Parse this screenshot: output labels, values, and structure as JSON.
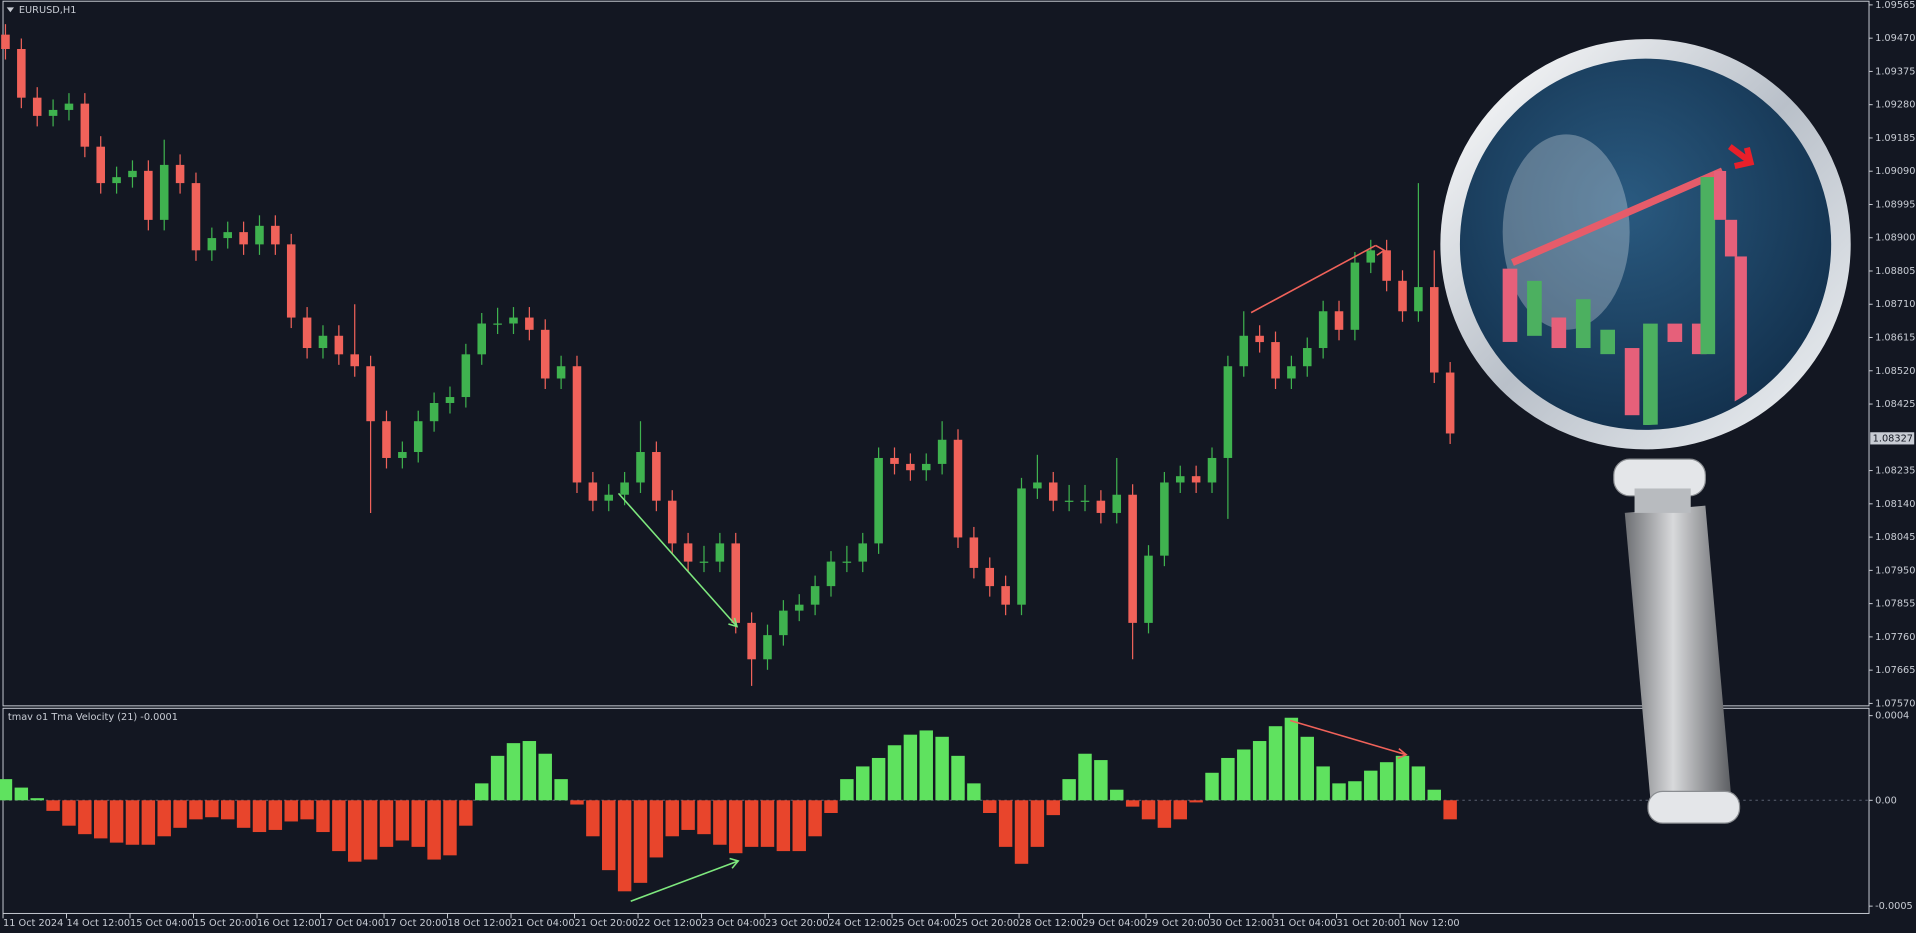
{
  "chart_data": [
    {
      "type": "candlestick",
      "title": "EURUSD,H1",
      "categories": [
        "11 Oct 2024",
        null,
        null,
        null,
        "14 Oct 12:00",
        null,
        null,
        null,
        "15 Oct 04:00",
        null,
        null,
        null,
        "15 Oct 20:00",
        null,
        null,
        null,
        "16 Oct 12:00",
        null,
        null,
        null,
        "17 Oct 04:00",
        null,
        null,
        null,
        "17 Oct 20:00",
        null,
        null,
        null,
        "18 Oct 12:00",
        null,
        null,
        null,
        "21 Oct 04:00",
        null,
        null,
        null,
        "21 Oct 20:00",
        null,
        null,
        null,
        "22 Oct 12:00",
        null,
        null,
        null,
        "23 Oct 04:00",
        null,
        null,
        null,
        "23 Oct 20:00",
        null,
        null,
        null,
        "24 Oct 12:00",
        null,
        null,
        null,
        "25 Oct 04:00",
        null,
        null,
        null,
        "25 Oct 20:00",
        null,
        null,
        null,
        "28 Oct 12:00",
        null,
        null,
        null,
        "29 Oct 04:00",
        null,
        null,
        null,
        "29 Oct 20:00",
        null,
        null,
        null,
        "30 Oct 12:00",
        null,
        null,
        null,
        "31 Oct 04:00",
        null,
        null,
        null,
        "31 Oct 20:00",
        null,
        null,
        null,
        "1 Nov 12:00",
        null,
        null,
        null
      ],
      "open": [
        1.0948,
        1.09439,
        1.093,
        1.09248,
        1.09265,
        1.09283,
        1.0916,
        1.09056,
        1.09073,
        1.09091,
        1.08951,
        1.09108,
        1.09056,
        1.08864,
        1.08899,
        1.08916,
        1.08881,
        1.08934,
        1.08881,
        1.08672,
        1.08585,
        1.0862,
        1.08567,
        1.08533,
        1.08376,
        1.08271,
        1.08288,
        1.08376,
        1.08428,
        1.08445,
        1.08567,
        1.08655,
        1.08655,
        1.08672,
        1.08637,
        1.08498,
        1.08533,
        1.08201,
        1.08149,
        1.08166,
        1.08201,
        1.08288,
        1.08149,
        1.08027,
        1.07975,
        1.07975,
        1.08027,
        1.078,
        1.07696,
        1.07765,
        1.07835,
        1.07852,
        1.07905,
        1.07975,
        1.07975,
        1.08027,
        1.08271,
        1.08254,
        1.08236,
        1.08254,
        1.08323,
        1.08044,
        1.07957,
        1.07905,
        1.07852,
        1.08184,
        1.08201,
        1.08149,
        1.08149,
        1.08149,
        1.08114,
        1.08166,
        1.078,
        1.07992,
        1.08201,
        1.08219,
        1.08201,
        1.08271,
        1.08533,
        1.0862,
        1.08602,
        1.08498,
        1.08533,
        1.08585,
        1.0869,
        1.08637,
        1.08829,
        1.08864,
        1.08777,
        1.0869,
        1.08759,
        1.08515
      ],
      "high": [
        1.0951,
        1.09469,
        1.0933,
        1.09295,
        1.09313,
        1.09313,
        1.0919,
        1.09103,
        1.09121,
        1.09121,
        1.0918,
        1.09138,
        1.09086,
        1.08929,
        1.08946,
        1.08946,
        1.08964,
        1.08964,
        1.08911,
        1.08702,
        1.0865,
        1.0865,
        1.0871,
        1.08563,
        1.08406,
        1.08318,
        1.08406,
        1.08458,
        1.08475,
        1.08597,
        1.08685,
        1.087,
        1.08702,
        1.08702,
        1.08667,
        1.08563,
        1.08563,
        1.08231,
        1.08196,
        1.08231,
        1.08376,
        1.08318,
        1.08179,
        1.08057,
        1.0802,
        1.08057,
        1.08057,
        1.0783,
        1.07795,
        1.07865,
        1.07882,
        1.07935,
        1.08005,
        1.0802,
        1.08057,
        1.08301,
        1.08301,
        1.08284,
        1.08284,
        1.08376,
        1.08353,
        1.08074,
        1.07987,
        1.07935,
        1.08214,
        1.0828,
        1.08231,
        1.08194,
        1.08194,
        1.08179,
        1.08271,
        1.08196,
        1.08022,
        1.08231,
        1.08249,
        1.08249,
        1.08301,
        1.08563,
        1.0869,
        1.0865,
        1.08632,
        1.08563,
        1.08615,
        1.0872,
        1.0872,
        1.08859,
        1.08894,
        1.08894,
        1.08807,
        1.09056,
        1.08864,
        1.08545
      ],
      "low": [
        1.09409,
        1.0927,
        1.09218,
        1.09218,
        1.09235,
        1.0913,
        1.09026,
        1.09026,
        1.09043,
        1.08921,
        1.08921,
        1.09026,
        1.08834,
        1.08834,
        1.08869,
        1.08851,
        1.08851,
        1.08851,
        1.08642,
        1.08555,
        1.08555,
        1.08537,
        1.08503,
        1.08114,
        1.08241,
        1.08241,
        1.08258,
        1.08346,
        1.08398,
        1.08415,
        1.08537,
        1.08625,
        1.08625,
        1.08607,
        1.08468,
        1.08468,
        1.08171,
        1.08119,
        1.08119,
        1.08136,
        1.08171,
        1.08119,
        1.07997,
        1.07945,
        1.07945,
        1.07945,
        1.0777,
        1.0762,
        1.07666,
        1.07735,
        1.07805,
        1.07822,
        1.07875,
        1.07945,
        1.07945,
        1.07997,
        1.08224,
        1.08206,
        1.08206,
        1.08224,
        1.08014,
        1.07927,
        1.07875,
        1.07822,
        1.07822,
        1.08154,
        1.08119,
        1.08119,
        1.08119,
        1.08084,
        1.08084,
        1.07696,
        1.0777,
        1.07962,
        1.08171,
        1.08171,
        1.08171,
        1.08097,
        1.08503,
        1.08572,
        1.08468,
        1.08468,
        1.08503,
        1.08555,
        1.08607,
        1.08607,
        1.08799,
        1.08747,
        1.0866,
        1.0866,
        1.08485,
        1.08311
      ],
      "close": [
        1.09439,
        1.093,
        1.09248,
        1.09265,
        1.09283,
        1.0916,
        1.09056,
        1.09073,
        1.09091,
        1.08951,
        1.09108,
        1.09056,
        1.08864,
        1.08899,
        1.08916,
        1.08881,
        1.08934,
        1.08881,
        1.08672,
        1.08585,
        1.0862,
        1.08567,
        1.08533,
        1.08376,
        1.08271,
        1.08288,
        1.08376,
        1.08428,
        1.08445,
        1.08567,
        1.08655,
        1.08655,
        1.08672,
        1.08637,
        1.08498,
        1.08533,
        1.08201,
        1.08149,
        1.08166,
        1.08201,
        1.08288,
        1.08149,
        1.08027,
        1.07975,
        1.07975,
        1.08027,
        1.078,
        1.07696,
        1.07765,
        1.07835,
        1.07852,
        1.07905,
        1.07975,
        1.07975,
        1.08027,
        1.08271,
        1.08254,
        1.08236,
        1.08254,
        1.08323,
        1.08044,
        1.07957,
        1.07905,
        1.07852,
        1.08184,
        1.08201,
        1.08149,
        1.08149,
        1.08149,
        1.08114,
        1.08166,
        1.078,
        1.07992,
        1.08201,
        1.08219,
        1.08201,
        1.08271,
        1.08533,
        1.0862,
        1.08602,
        1.08498,
        1.08533,
        1.08585,
        1.0869,
        1.08637,
        1.08829,
        1.08864,
        1.08777,
        1.0869,
        1.08759,
        1.08515,
        1.08341
      ],
      "up_color": "#3fb24f",
      "down_color": "#f0625a",
      "current_price": 1.08327,
      "ylim": [
        1.0757,
        1.09565
      ],
      "yticks": [
        1.09565,
        {
          "value": 1.0947,
          "label": "1.09470"
        },
        1.09375,
        {
          "value": 1.0928,
          "label": "1.09280"
        },
        1.09185,
        {
          "value": 1.0909,
          "label": "1.09090"
        },
        1.08995,
        {
          "value": 1.089,
          "label": "1.08900"
        },
        1.08805,
        {
          "value": 1.0871,
          "label": "1.08710"
        },
        1.08615,
        {
          "value": 1.0852,
          "label": "1.08520"
        },
        1.08425,
        1.08235,
        {
          "value": 1.0814,
          "label": "1.08140"
        },
        1.08045,
        {
          "value": 1.0795,
          "label": "1.07950"
        },
        1.07855,
        {
          "value": 1.0776,
          "label": "1.07760"
        },
        1.07665,
        {
          "value": 1.0757,
          "label": "1.07570"
        }
      ]
    },
    {
      "type": "bar",
      "title": "tmav o1 Tma Velocity (21) -0.0001",
      "values": [
        0.0001,
        6e-05,
        1e-05,
        -5e-05,
        -0.00012,
        -0.00016,
        -0.00018,
        -0.0002,
        -0.00021,
        -0.00021,
        -0.00017,
        -0.00013,
        -9e-05,
        -8e-05,
        -9e-05,
        -0.00013,
        -0.00015,
        -0.00014,
        -0.0001,
        -9e-05,
        -0.00015,
        -0.00024,
        -0.00029,
        -0.00028,
        -0.00022,
        -0.00019,
        -0.00022,
        -0.00028,
        -0.00026,
        -0.00012,
        8e-05,
        0.00021,
        0.00027,
        0.00028,
        0.00022,
        0.0001,
        -2e-05,
        -0.00017,
        -0.00033,
        -0.00043,
        -0.00039,
        -0.00027,
        -0.00017,
        -0.00014,
        -0.00016,
        -0.00021,
        -0.00025,
        -0.00022,
        -0.00022,
        -0.00024,
        -0.00024,
        -0.00017,
        -6e-05,
        0.0001,
        0.00016,
        0.0002,
        0.00026,
        0.00031,
        0.00033,
        0.0003,
        0.00021,
        8e-05,
        -6e-05,
        -0.00022,
        -0.0003,
        -0.00022,
        -7e-05,
        0.0001,
        0.00022,
        0.00019,
        5e-05,
        -3e-05,
        -9e-05,
        -0.00013,
        -9e-05,
        -1e-05,
        0.00013,
        0.0002,
        0.00024,
        0.00028,
        0.00035,
        0.00039,
        0.0003,
        0.00016,
        8e-05,
        9e-05,
        0.00014,
        0.00018,
        0.00021,
        0.00016,
        5e-05,
        -9e-05
      ],
      "positive_color": "#5fe25f",
      "negative_color": "#e8452c",
      "ylim": [
        -0.0005,
        0.0004
      ],
      "yticks": [
        0.0004,
        {
          "value": 0,
          "label": "0.00"
        },
        -0.0005
      ]
    }
  ]
}
